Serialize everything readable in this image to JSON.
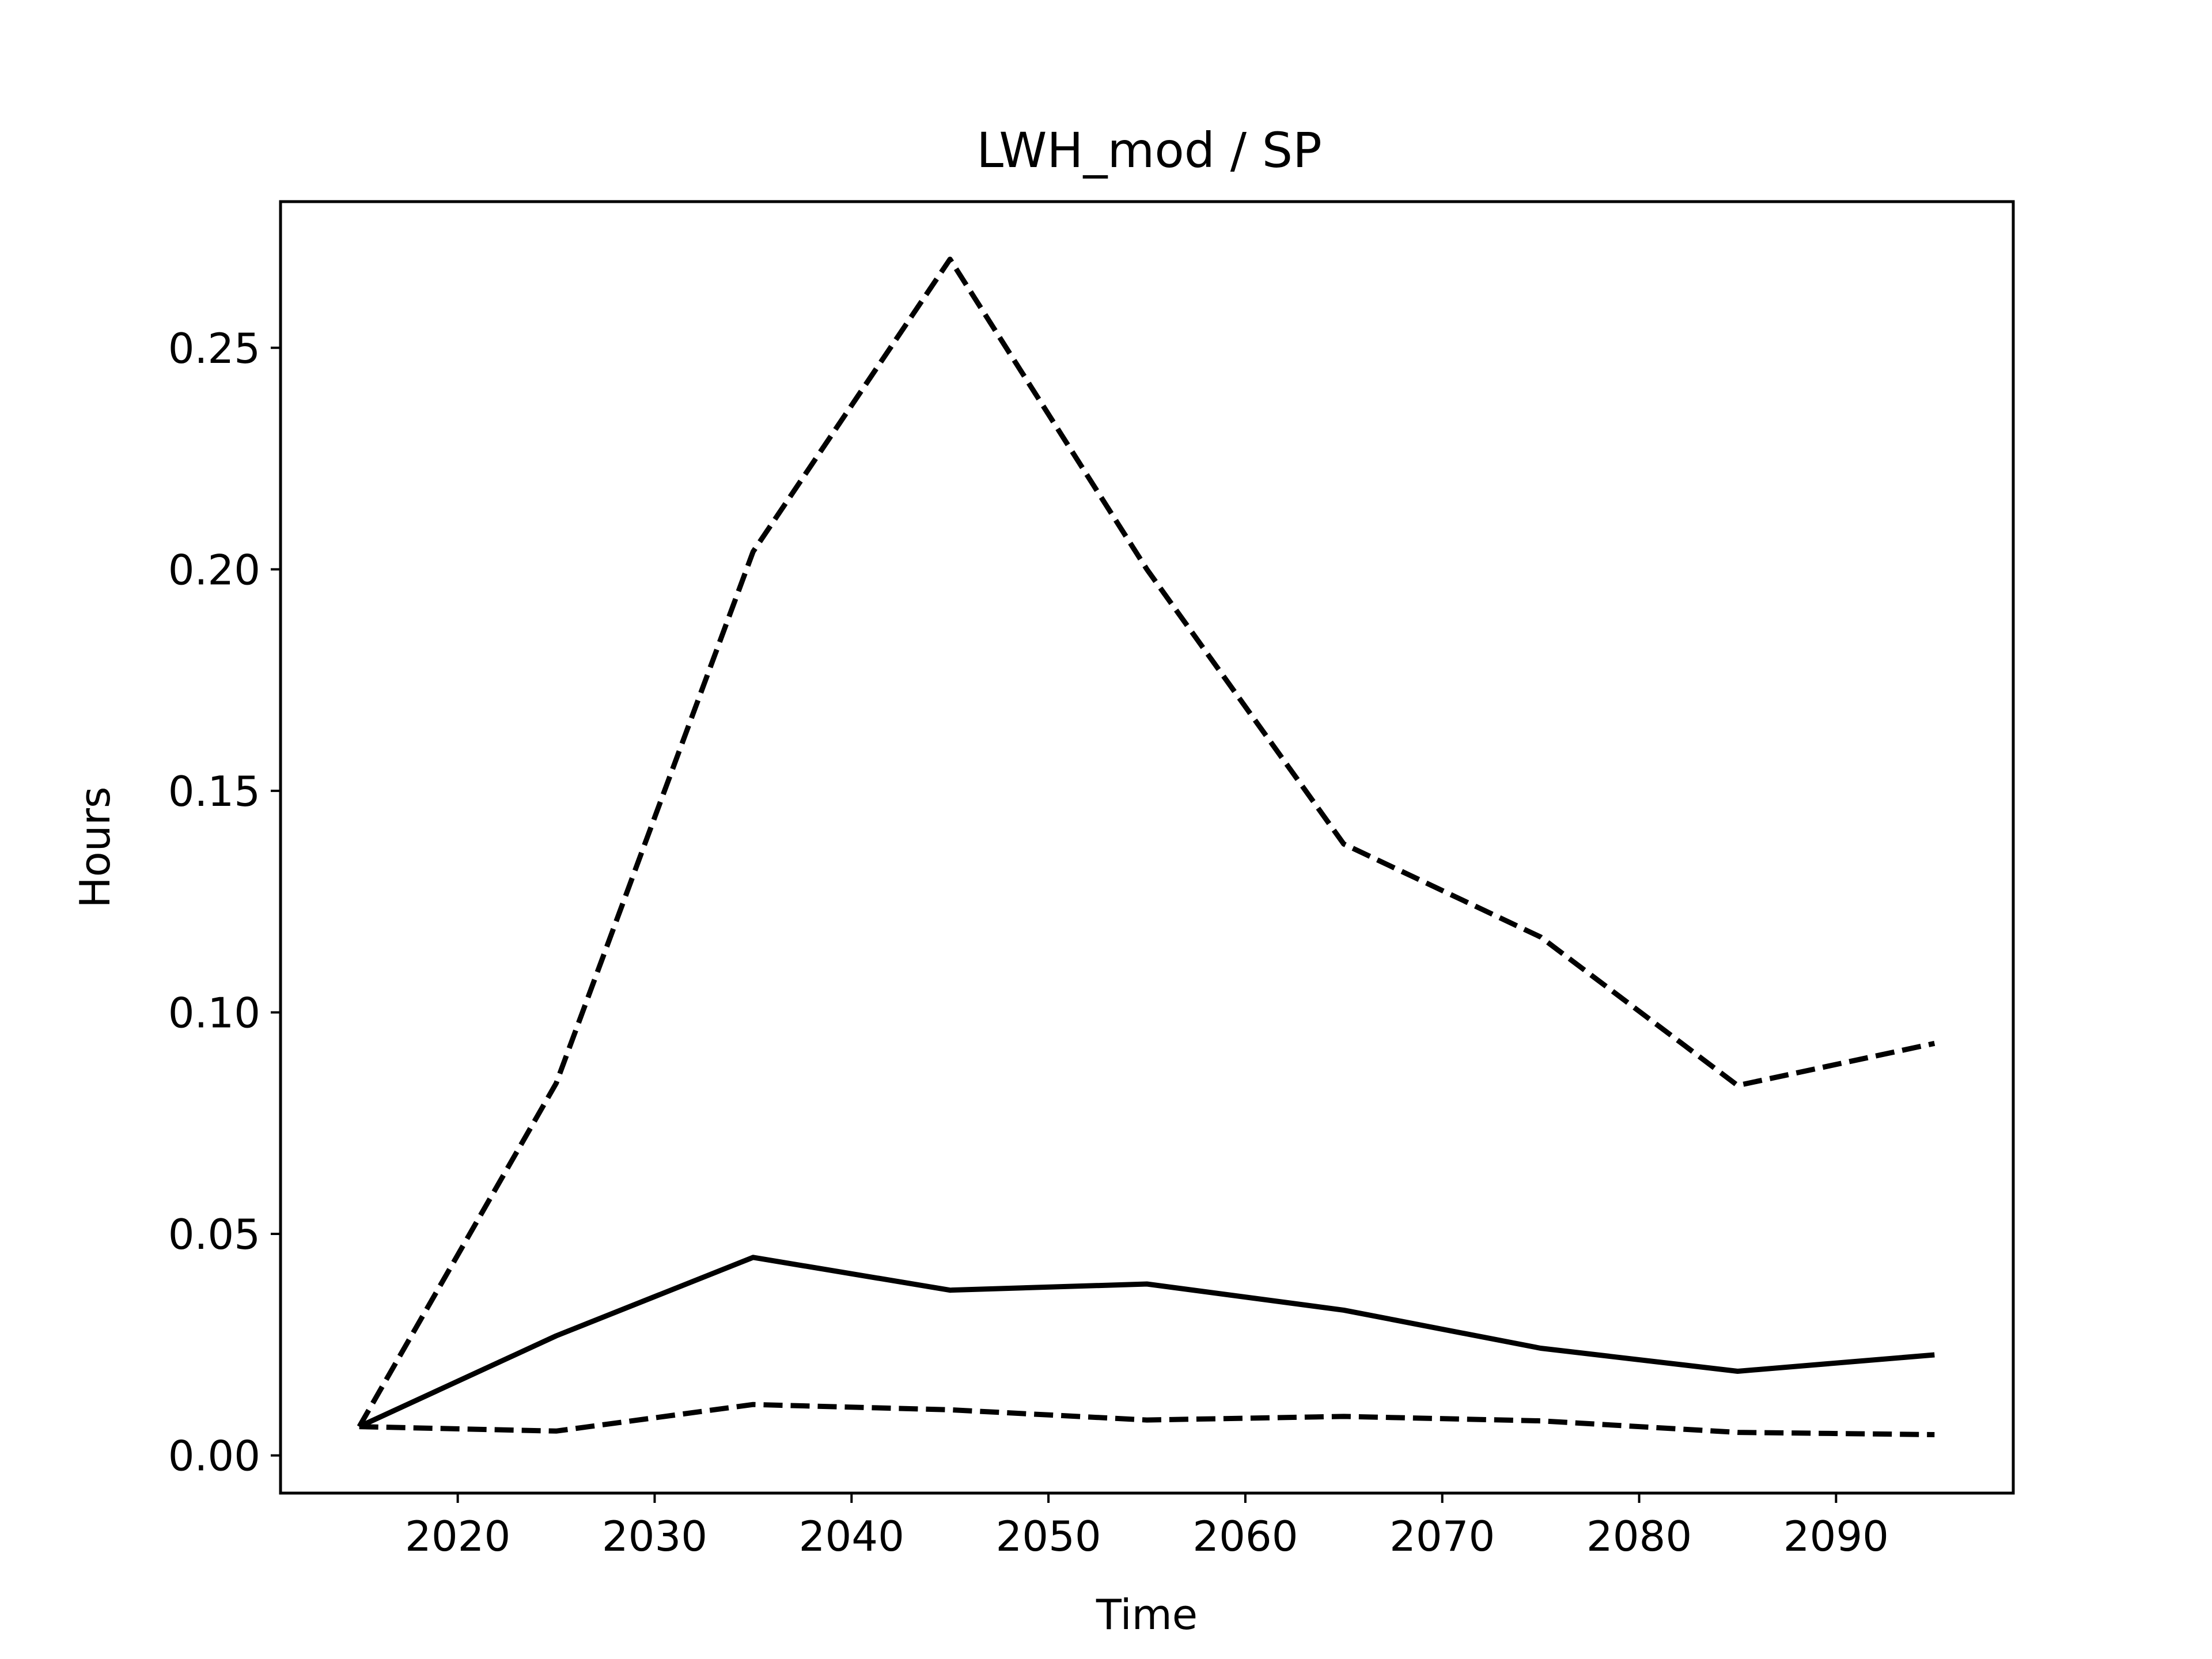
{
  "chart_data": {
    "type": "line",
    "title": "LWH_mod / SP",
    "xlabel": "Time",
    "ylabel": "Hours",
    "xlim": [
      2011,
      2099
    ],
    "ylim": [
      -0.0085,
      0.283
    ],
    "xticks": [
      2020,
      2030,
      2040,
      2050,
      2060,
      2070,
      2080,
      2090
    ],
    "xtick_labels": [
      "2020",
      "2030",
      "2040",
      "2050",
      "2060",
      "2070",
      "2080",
      "2090"
    ],
    "yticks": [
      0.0,
      0.05,
      0.1,
      0.15,
      0.2,
      0.25
    ],
    "ytick_labels": [
      "0.00",
      "0.05",
      "0.10",
      "0.15",
      "0.20",
      "0.25"
    ],
    "grid": false,
    "legend": false,
    "x": [
      2015,
      2025,
      2035,
      2045,
      2055,
      2065,
      2075,
      2085,
      2095
    ],
    "series": [
      {
        "values": [
          0.0065,
          0.027,
          0.0447,
          0.0373,
          0.0387,
          0.0328,
          0.0242,
          0.019,
          0.0227
        ],
        "style": "solid",
        "color": "#000000"
      },
      {
        "values": [
          0.0065,
          0.084,
          0.204,
          0.27,
          0.2,
          0.138,
          0.117,
          0.0835,
          0.093
        ],
        "style": "dashed",
        "color": "#000000"
      },
      {
        "values": [
          0.0065,
          0.0055,
          0.0115,
          0.0103,
          0.008,
          0.0088,
          0.0078,
          0.0052,
          0.0047
        ],
        "style": "dashed",
        "color": "#000000"
      }
    ]
  }
}
